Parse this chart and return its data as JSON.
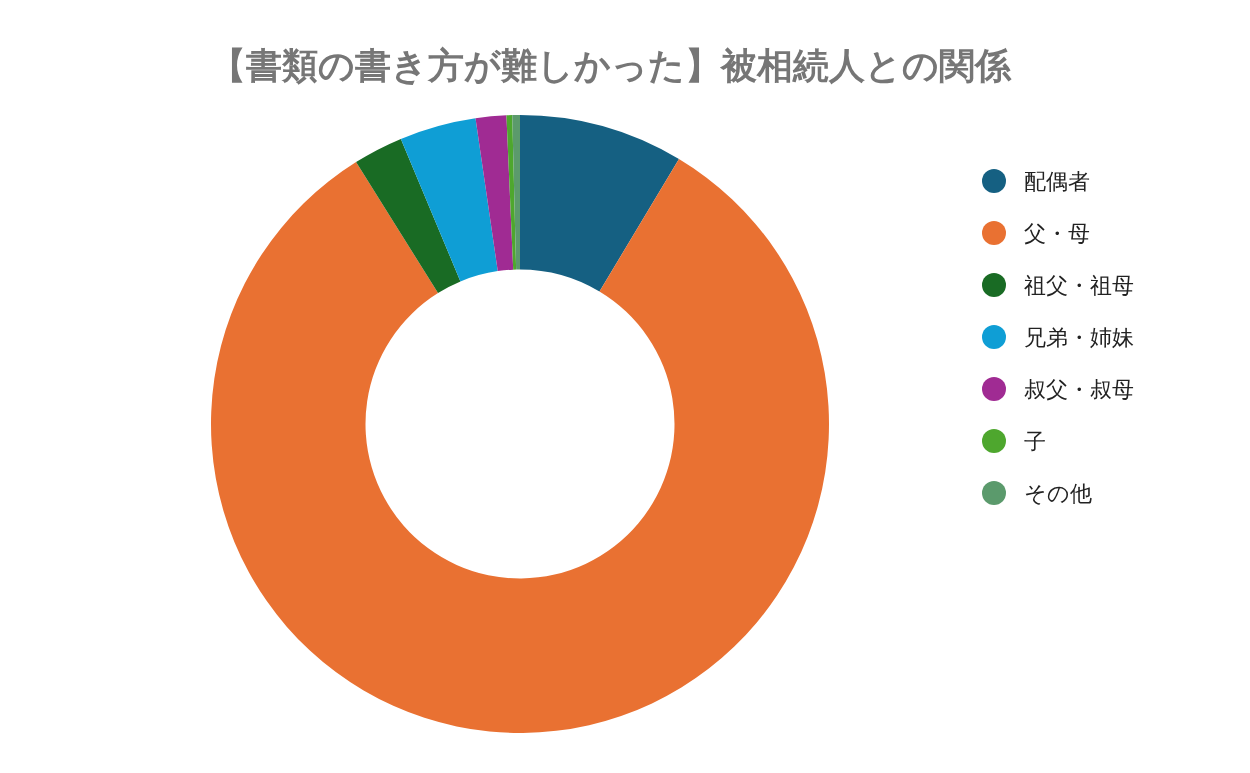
{
  "chart_data": {
    "type": "donut",
    "title": "【書類の書き方が難しかった】被相続人との関係",
    "categories": [
      "配偶者",
      "父・母",
      "祖父・祖母",
      "兄弟・姉妹",
      "叔父・叔母",
      "子",
      "その他"
    ],
    "values": [
      8.6,
      82.5,
      2.6,
      4.0,
      1.6,
      0.3,
      0.4
    ],
    "colors": [
      "#156082",
      "#e97132",
      "#196b24",
      "#0f9ed5",
      "#a02b93",
      "#4ea72e",
      "#5b9a6c"
    ],
    "legend": "right"
  }
}
